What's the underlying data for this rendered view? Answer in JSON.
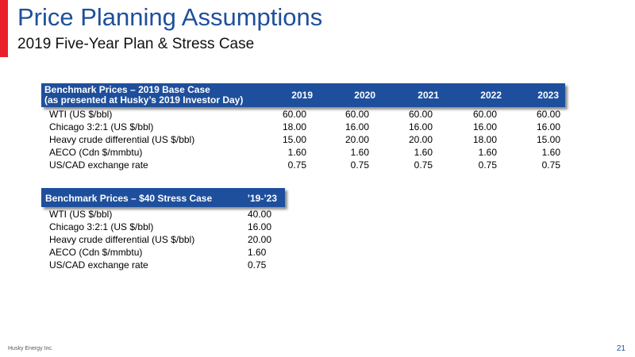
{
  "slide": {
    "title": "Price Planning Assumptions",
    "subtitle": "2019 Five-Year Plan & Stress Case",
    "accent_color": "#e8202a",
    "brand_color": "#1e4f9c"
  },
  "base_case": {
    "header_line1": "Benchmark Prices – 2019 Base Case",
    "header_line2": "(as presented at Husky’s 2019 Investor Day)",
    "years": [
      "2019",
      "2020",
      "2021",
      "2022",
      "2023"
    ],
    "rows": [
      {
        "label": "WTI (US $/bbl)",
        "values": [
          "60.00",
          "60.00",
          "60.00",
          "60.00",
          "60.00"
        ]
      },
      {
        "label": "Chicago 3:2:1 (US $/bbl)",
        "values": [
          "18.00",
          "16.00",
          "16.00",
          "16.00",
          "16.00"
        ]
      },
      {
        "label": "Heavy crude differential (US $/bbl)",
        "values": [
          "15.00",
          "20.00",
          "20.00",
          "18.00",
          "15.00"
        ]
      },
      {
        "label": "AECO (Cdn $/mmbtu)",
        "values": [
          "1.60",
          "1.60",
          "1.60",
          "1.60",
          "1.60"
        ]
      },
      {
        "label": "US/CAD exchange rate",
        "values": [
          "0.75",
          "0.75",
          "0.75",
          "0.75",
          "0.75"
        ]
      }
    ]
  },
  "stress_case": {
    "header": "Benchmark Prices – $40 Stress Case",
    "period": "’19-’23",
    "rows": [
      {
        "label": "WTI (US $/bbl)",
        "value": "40.00"
      },
      {
        "label": "Chicago 3:2:1 (US $/bbl)",
        "value": "16.00"
      },
      {
        "label": "Heavy crude differential (US $/bbl)",
        "value": "20.00"
      },
      {
        "label": "AECO (Cdn $/mmbtu)",
        "value": "1.60"
      },
      {
        "label": "US/CAD exchange rate",
        "value": "0.75"
      }
    ]
  },
  "footer": {
    "company": "Husky Energy Inc.",
    "page_number": "21"
  }
}
